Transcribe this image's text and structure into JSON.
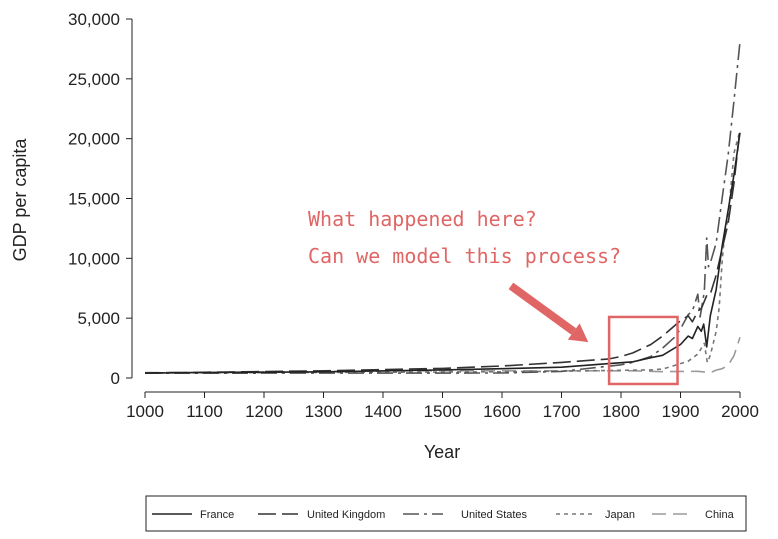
{
  "chart_data": {
    "type": "line",
    "title": "",
    "xlabel": "Year",
    "ylabel": "GDP per capita",
    "xlim": [
      1000,
      2000
    ],
    "ylim": [
      0,
      30000
    ],
    "xticks": [
      "1000",
      "1100",
      "1200",
      "1300",
      "1400",
      "1500",
      "1600",
      "1700",
      "1800",
      "1900",
      "2000"
    ],
    "yticks": [
      "0",
      "5,000",
      "10,000",
      "15,000",
      "20,000",
      "25,000",
      "30,000"
    ],
    "grid": false,
    "legend_position": "bottom",
    "series": [
      {
        "name": "France",
        "color": "#222222",
        "dash": "",
        "points": [
          [
            1000,
            420
          ],
          [
            1300,
            520
          ],
          [
            1500,
            680
          ],
          [
            1600,
            780
          ],
          [
            1700,
            900
          ],
          [
            1780,
            1200
          ],
          [
            1820,
            1350
          ],
          [
            1850,
            1700
          ],
          [
            1870,
            1900
          ],
          [
            1900,
            2800
          ],
          [
            1913,
            3500
          ],
          [
            1920,
            3300
          ],
          [
            1929,
            4300
          ],
          [
            1935,
            3900
          ],
          [
            1939,
            4500
          ],
          [
            1944,
            2600
          ],
          [
            1950,
            5200
          ],
          [
            1960,
            7400
          ],
          [
            1970,
            11000
          ],
          [
            1980,
            14000
          ],
          [
            1990,
            17000
          ],
          [
            2000,
            20500
          ]
        ]
      },
      {
        "name": "United Kingdom",
        "color": "#333333",
        "dash": "18,6",
        "points": [
          [
            1000,
            420
          ],
          [
            1300,
            600
          ],
          [
            1500,
            800
          ],
          [
            1600,
            1000
          ],
          [
            1700,
            1300
          ],
          [
            1780,
            1600
          ],
          [
            1800,
            1800
          ],
          [
            1820,
            2100
          ],
          [
            1850,
            2800
          ],
          [
            1870,
            3500
          ],
          [
            1900,
            4800
          ],
          [
            1913,
            5200
          ],
          [
            1920,
            4700
          ],
          [
            1929,
            5600
          ],
          [
            1935,
            5800
          ],
          [
            1945,
            7000
          ],
          [
            1950,
            7000
          ],
          [
            1960,
            8600
          ],
          [
            1970,
            10800
          ],
          [
            1980,
            12900
          ],
          [
            1990,
            16300
          ],
          [
            2000,
            20800
          ]
        ]
      },
      {
        "name": "United States",
        "color": "#555555",
        "dash": "16,5,3,5",
        "points": [
          [
            1000,
            400
          ],
          [
            1600,
            420
          ],
          [
            1700,
            550
          ],
          [
            1800,
            1100
          ],
          [
            1820,
            1300
          ],
          [
            1850,
            1800
          ],
          [
            1870,
            2500
          ],
          [
            1890,
            3400
          ],
          [
            1900,
            4100
          ],
          [
            1913,
            5300
          ],
          [
            1920,
            5600
          ],
          [
            1929,
            7000
          ],
          [
            1933,
            5100
          ],
          [
            1940,
            7200
          ],
          [
            1944,
            11700
          ],
          [
            1947,
            9300
          ],
          [
            1950,
            9600
          ],
          [
            1960,
            11300
          ],
          [
            1970,
            15000
          ],
          [
            1980,
            18600
          ],
          [
            1990,
            23200
          ],
          [
            2000,
            28100
          ]
        ]
      },
      {
        "name": "Japan",
        "color": "#777777",
        "dash": "4,4",
        "points": [
          [
            1000,
            420
          ],
          [
            1500,
            500
          ],
          [
            1600,
            520
          ],
          [
            1700,
            570
          ],
          [
            1800,
            640
          ],
          [
            1850,
            680
          ],
          [
            1870,
            740
          ],
          [
            1900,
            1200
          ],
          [
            1913,
            1400
          ],
          [
            1929,
            2000
          ],
          [
            1940,
            2900
          ],
          [
            1945,
            1300
          ],
          [
            1950,
            1900
          ],
          [
            1960,
            3900
          ],
          [
            1965,
            5900
          ],
          [
            1970,
            9700
          ],
          [
            1973,
            11400
          ],
          [
            1980,
            13400
          ],
          [
            1990,
            18800
          ],
          [
            2000,
            20700
          ]
        ]
      },
      {
        "name": "China",
        "color": "#9a9a9a",
        "dash": "14,7",
        "points": [
          [
            1000,
            450
          ],
          [
            1500,
            600
          ],
          [
            1600,
            600
          ],
          [
            1700,
            600
          ],
          [
            1800,
            600
          ],
          [
            1820,
            600
          ],
          [
            1870,
            530
          ],
          [
            1900,
            550
          ],
          [
            1913,
            550
          ],
          [
            1929,
            560
          ],
          [
            1950,
            450
          ],
          [
            1960,
            660
          ],
          [
            1970,
            780
          ],
          [
            1980,
            1060
          ],
          [
            1990,
            1870
          ],
          [
            2000,
            3400
          ]
        ]
      }
    ],
    "annotation": {
      "lines": [
        "What happened here?",
        "Can we model this process?"
      ],
      "box_x_range": [
        1780,
        1895
      ],
      "box_y_range": [
        -500,
        5100
      ],
      "arrow_from": [
        1615,
        7700
      ],
      "arrow_to": [
        1745,
        3000
      ],
      "color": "#e06666"
    }
  }
}
